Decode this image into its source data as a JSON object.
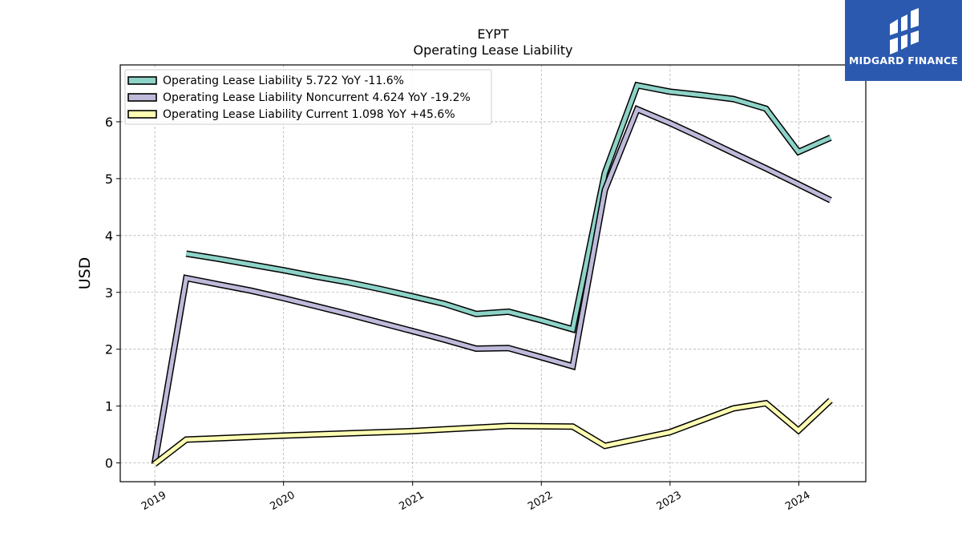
{
  "logo": {
    "text": "MIDGARD FINANCE"
  },
  "chart_data": {
    "type": "line",
    "title": "EYPT",
    "subtitle": "Operating Lease Liability",
    "ylabel": "USD",
    "xlabel": "",
    "ylim": [
      -0.33,
      7.0
    ],
    "xlim": [
      "2018-09-25",
      "2024-07-09"
    ],
    "yticks": [
      0,
      1,
      2,
      3,
      4,
      5,
      6
    ],
    "xticks": [
      "2019",
      "2020",
      "2021",
      "2022",
      "2023",
      "2024"
    ],
    "grid": true,
    "legend_position": "top-left",
    "series": [
      {
        "name": "Operating Lease Liability",
        "legend": "Operating Lease Liability  5.722 YoY -11.6%",
        "color": "#8dd3c7",
        "points": [
          [
            "2019-03-31",
            3.68
          ],
          [
            "2019-06-30",
            3.59
          ],
          [
            "2019-09-30",
            3.49
          ],
          [
            "2019-12-31",
            3.39
          ],
          [
            "2020-03-31",
            3.28
          ],
          [
            "2020-06-30",
            3.18
          ],
          [
            "2020-09-30",
            3.06
          ],
          [
            "2020-12-31",
            2.93
          ],
          [
            "2021-03-31",
            2.8
          ],
          [
            "2021-06-30",
            2.62
          ],
          [
            "2021-09-30",
            2.66
          ],
          [
            "2021-12-31",
            2.51
          ],
          [
            "2022-03-31",
            2.35
          ],
          [
            "2022-06-30",
            5.1
          ],
          [
            "2022-09-30",
            6.64
          ],
          [
            "2022-12-31",
            6.53
          ],
          [
            "2023-03-31",
            6.47
          ],
          [
            "2023-06-30",
            6.4
          ],
          [
            "2023-09-30",
            6.23
          ],
          [
            "2023-12-31",
            5.47
          ],
          [
            "2024-03-31",
            5.72
          ]
        ]
      },
      {
        "name": "Operating Lease Liability Noncurrent",
        "legend": "Operating Lease Liability Noncurrent  4.624 YoY -19.2%",
        "color": "#bebada",
        "points": [
          [
            "2018-12-31",
            -0.02
          ],
          [
            "2019-03-31",
            3.25
          ],
          [
            "2019-06-30",
            3.14
          ],
          [
            "2019-09-30",
            3.03
          ],
          [
            "2019-12-31",
            2.9
          ],
          [
            "2020-03-31",
            2.76
          ],
          [
            "2020-06-30",
            2.62
          ],
          [
            "2020-09-30",
            2.47
          ],
          [
            "2020-12-31",
            2.32
          ],
          [
            "2021-03-31",
            2.17
          ],
          [
            "2021-06-30",
            2.01
          ],
          [
            "2021-09-30",
            2.02
          ],
          [
            "2021-12-31",
            1.86
          ],
          [
            "2022-03-31",
            1.7
          ],
          [
            "2022-06-30",
            4.8
          ],
          [
            "2022-09-30",
            6.22
          ],
          [
            "2022-12-31",
            5.98
          ],
          [
            "2023-03-31",
            5.72
          ],
          [
            "2023-06-30",
            5.45
          ],
          [
            "2023-09-30",
            5.18
          ],
          [
            "2023-12-31",
            4.9
          ],
          [
            "2024-03-31",
            4.62
          ]
        ]
      },
      {
        "name": "Operating Lease Liability Current",
        "legend": "Operating Lease Liability Current  1.098 YoY +45.6%",
        "color": "#ffffb3",
        "points": [
          [
            "2018-12-31",
            -0.02
          ],
          [
            "2019-03-31",
            0.41
          ],
          [
            "2019-12-31",
            0.48
          ],
          [
            "2020-12-31",
            0.56
          ],
          [
            "2021-06-30",
            0.62
          ],
          [
            "2021-09-30",
            0.65
          ],
          [
            "2022-03-31",
            0.64
          ],
          [
            "2022-06-30",
            0.3
          ],
          [
            "2022-12-31",
            0.54
          ],
          [
            "2023-06-30",
            0.96
          ],
          [
            "2023-09-30",
            1.05
          ],
          [
            "2023-12-31",
            0.57
          ],
          [
            "2024-03-31",
            1.1
          ]
        ]
      }
    ]
  }
}
